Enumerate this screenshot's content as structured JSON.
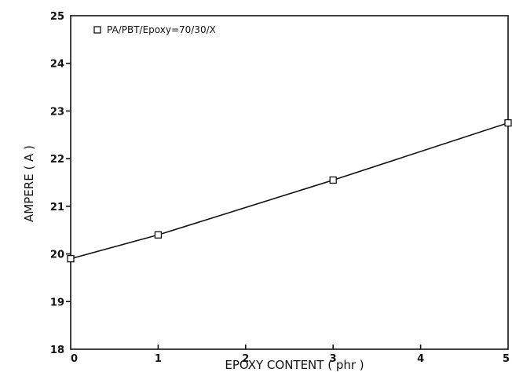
{
  "chart_data": {
    "type": "line",
    "title": "",
    "xlabel": "EPOXY CONTENT ( phr )",
    "ylabel": "AMPERE ( A )",
    "xlim": [
      0,
      5
    ],
    "ylim": [
      18,
      25
    ],
    "xticks": [
      "0",
      "1",
      "2",
      "3",
      "4",
      "5"
    ],
    "yticks": [
      "18",
      "19",
      "20",
      "21",
      "22",
      "23",
      "24",
      "25"
    ],
    "grid": false,
    "legend_position": "top-left",
    "marker": "square",
    "line_color": "#111111",
    "series": [
      {
        "name": "PA/PBT/Epoxy=70/30/X",
        "x": [
          0,
          1,
          3,
          5
        ],
        "y": [
          19.9,
          20.4,
          21.55,
          22.75
        ]
      }
    ]
  }
}
